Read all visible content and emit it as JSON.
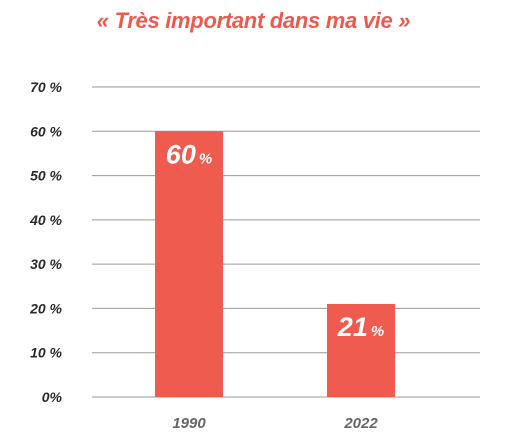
{
  "chart_data": {
    "type": "bar",
    "title": "« Très important dans ma vie »",
    "categories": [
      "1990",
      "2022"
    ],
    "values": [
      60,
      21
    ],
    "data_labels": [
      {
        "number": "60",
        "unit": "%"
      },
      {
        "number": "21",
        "unit": "%"
      }
    ],
    "y_ticks": [
      "0%",
      "10 %",
      "20 %",
      "30 %",
      "40 %",
      "50 %",
      "60 %",
      "70 %"
    ],
    "ylim": [
      0,
      70
    ],
    "grid": true,
    "bar_color": "#ef5b4f",
    "title_color": "#ec5a4e"
  }
}
